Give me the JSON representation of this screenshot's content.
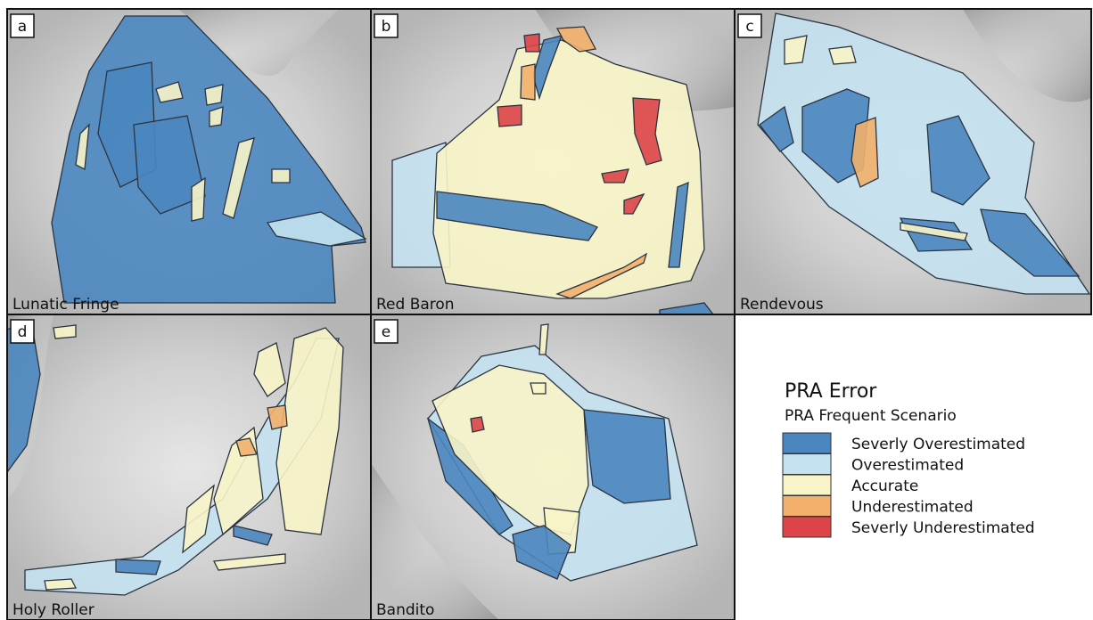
{
  "panels": [
    {
      "letter": "a",
      "name": "Lunatic Fringe"
    },
    {
      "letter": "b",
      "name": "Red Baron"
    },
    {
      "letter": "c",
      "name": "Rendevous"
    },
    {
      "letter": "d",
      "name": "Holy Roller"
    },
    {
      "letter": "e",
      "name": "Bandito"
    }
  ],
  "legend": {
    "title": "PRA Error",
    "subtitle": "PRA Frequent Scenario",
    "items": [
      {
        "label": "Severly Overestimated",
        "color": "#4a86bf"
      },
      {
        "label": "Overestimated",
        "color": "#c4e2ef"
      },
      {
        "label": "Accurate",
        "color": "#f8f4c8"
      },
      {
        "label": "Underestimated",
        "color": "#f2b06c"
      },
      {
        "label": "Severly Underestimated",
        "color": "#dd4449"
      }
    ]
  }
}
